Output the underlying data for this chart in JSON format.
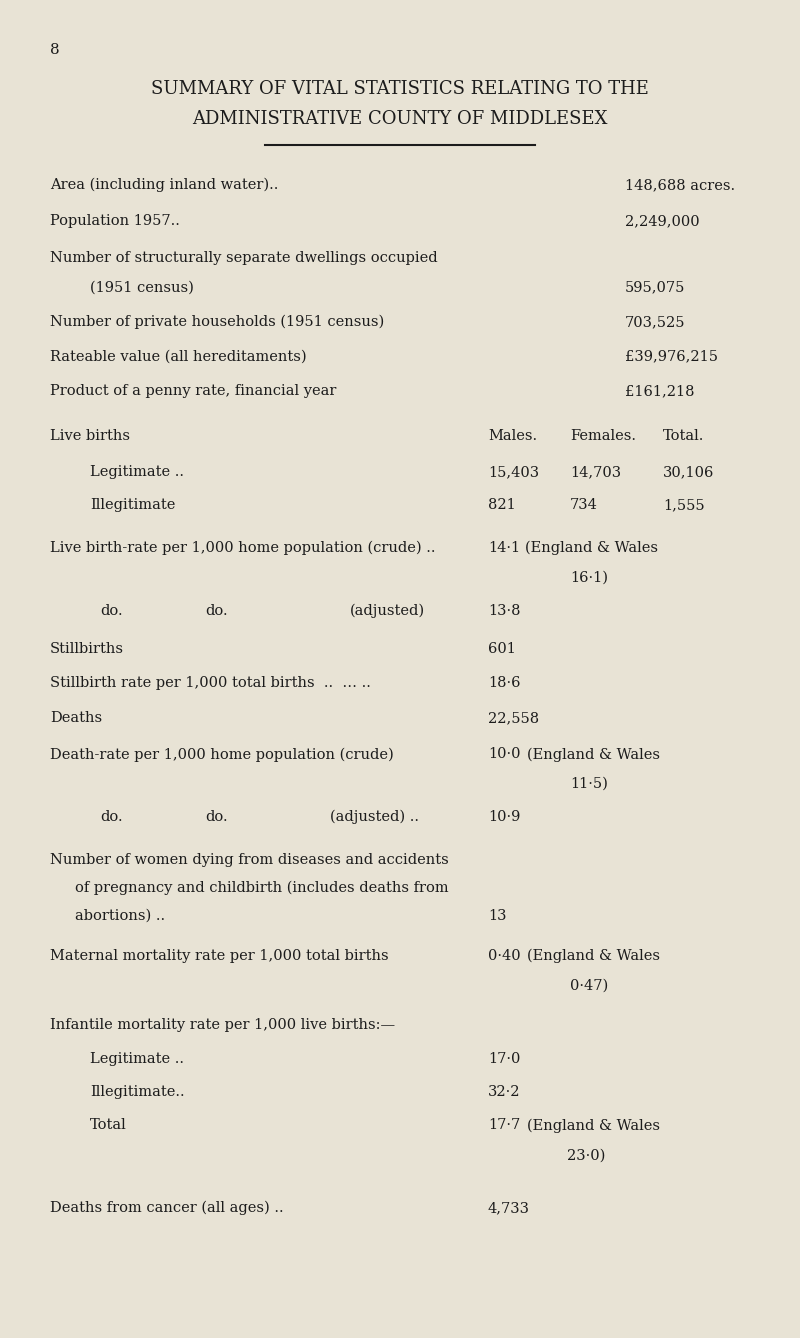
{
  "page_number": "8",
  "title_line1": "SUMMARY OF VITAL STATISTICS RELATING TO THE",
  "title_line2": "ADMINISTRATIVE COUNTY OF MIDDLESEX",
  "bg_color": "#e8e3d5",
  "text_color": "#1c1c1c",
  "font_size": 10.5,
  "title_font_size": 13.0
}
